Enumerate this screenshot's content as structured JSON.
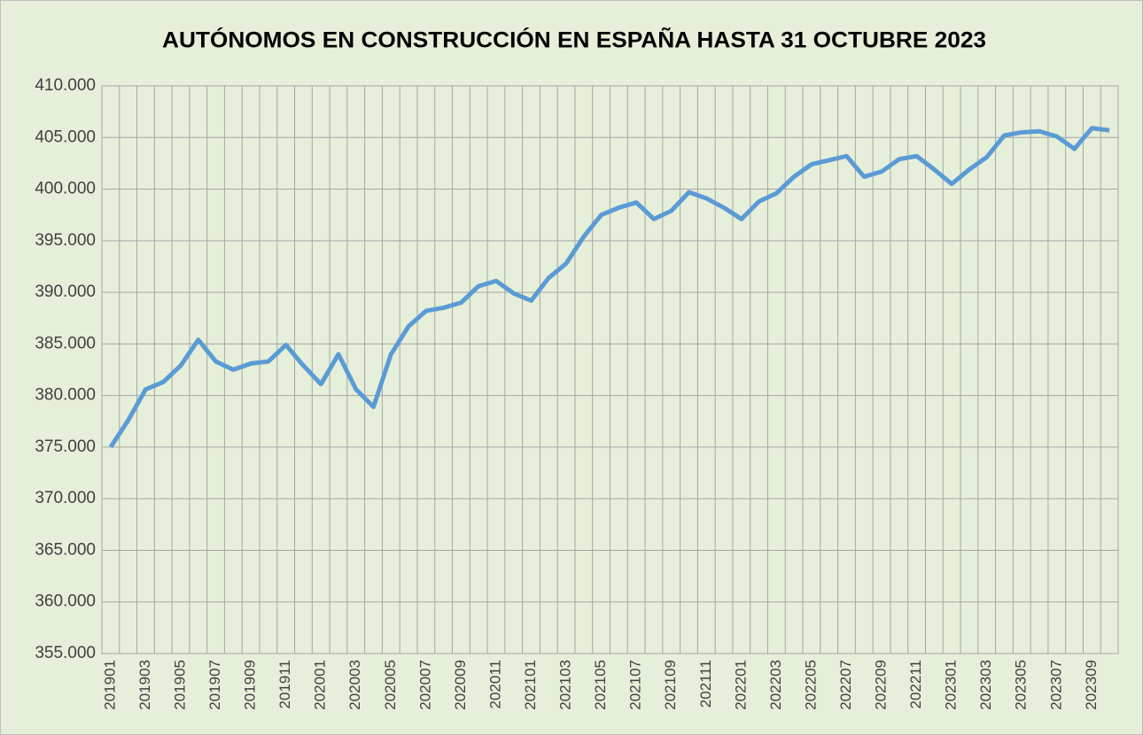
{
  "chart_data": {
    "type": "line",
    "title": "AUTÓNOMOS EN CONSTRUCCIÓN EN ESPAÑA HASTA 31 OCTUBRE 2023",
    "categories": [
      "201901",
      null,
      "201903",
      null,
      "201905",
      null,
      "201907",
      null,
      "201909",
      null,
      "201911",
      null,
      "202001",
      null,
      "202003",
      null,
      "202005",
      null,
      "202007",
      null,
      "202009",
      null,
      "202011",
      null,
      "202101",
      null,
      "202103",
      null,
      "202105",
      null,
      "202107",
      null,
      "202109",
      null,
      "202111",
      null,
      "202201",
      null,
      "202203",
      null,
      "202205",
      null,
      "202207",
      null,
      "202209",
      null,
      "202211",
      null,
      "202301",
      null,
      "202303",
      null,
      "202305",
      null,
      "202307",
      null,
      "202309",
      null
    ],
    "series": [
      {
        "color": "#5b9bd5",
        "values": [
          375000,
          377600,
          380600,
          381300,
          382900,
          385400,
          383300,
          382500,
          383100,
          383300,
          384900,
          382900,
          381100,
          384000,
          380600,
          378900,
          384000,
          386700,
          388200,
          388500,
          389000,
          390600,
          391100,
          389900,
          389200,
          391400,
          392800,
          395400,
          397500,
          398200,
          398700,
          397100,
          397900,
          399700,
          399100,
          398200,
          397100,
          398800,
          399600,
          401200,
          402400,
          402800,
          403200,
          401200,
          401700,
          402900,
          403200,
          401900,
          400500,
          401900,
          403100,
          405200,
          405500,
          405600,
          405100,
          403900,
          405900,
          405700
        ]
      }
    ],
    "ylim": [
      355000,
      410000
    ],
    "yticks": [
      {
        "value": 355000,
        "label": "355.000"
      },
      {
        "value": 360000,
        "label": "360.000"
      },
      {
        "value": 365000,
        "label": "365.000"
      },
      {
        "value": 370000,
        "label": "370.000"
      },
      {
        "value": 375000,
        "label": "375.000"
      },
      {
        "value": 380000,
        "label": "380.000"
      },
      {
        "value": 385000,
        "label": "385.000"
      },
      {
        "value": 390000,
        "label": "390.000"
      },
      {
        "value": 395000,
        "label": "395.000"
      },
      {
        "value": 400000,
        "label": "400.000"
      },
      {
        "value": 405000,
        "label": "405.000"
      },
      {
        "value": 410000,
        "label": "410.000"
      }
    ],
    "grid": true
  }
}
